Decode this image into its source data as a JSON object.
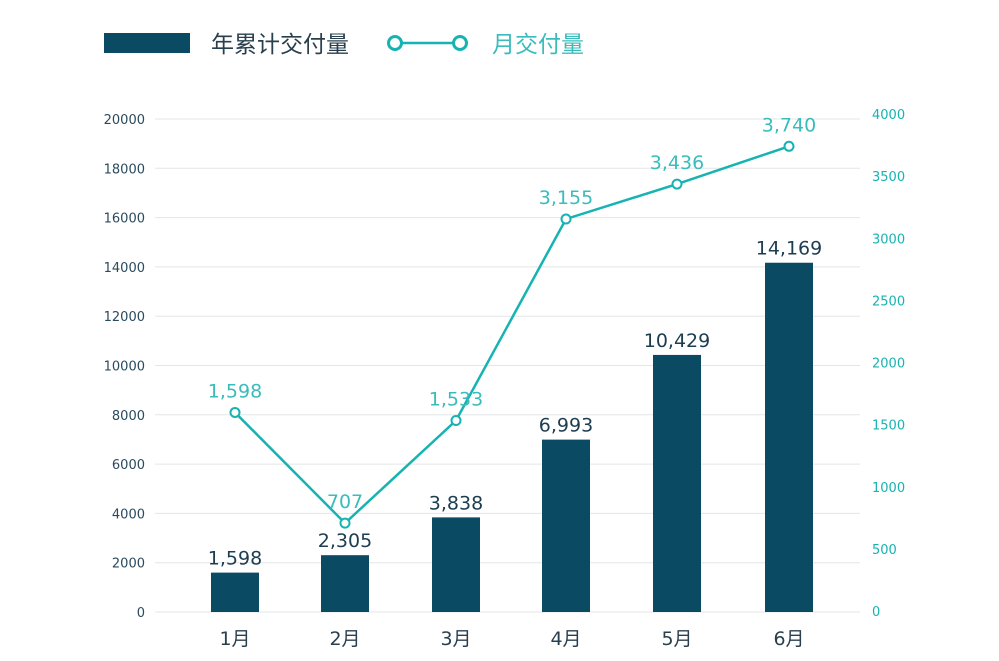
{
  "chart_data": {
    "type": "bar+line",
    "categories": [
      "1月",
      "2月",
      "3月",
      "4月",
      "5月",
      "6月"
    ],
    "series": [
      {
        "name": "年累计交付量",
        "type": "bar",
        "axis": "left",
        "values": [
          1598,
          2305,
          3838,
          6993,
          10429,
          14169
        ],
        "labels": [
          "1,598",
          "2,305",
          "3,838",
          "6,993",
          "10,429",
          "14,169"
        ],
        "color": "#0b4a63"
      },
      {
        "name": "月交付量",
        "type": "line",
        "axis": "right",
        "values": [
          1598,
          707,
          1533,
          3155,
          3436,
          3740
        ],
        "labels": [
          "1,598",
          "707",
          "1,533",
          "3,155",
          "3,436",
          "3,740"
        ],
        "color": "#17b3b3"
      }
    ],
    "left_axis": {
      "ylim": [
        0,
        20000
      ],
      "ticks": [
        "0",
        "2000",
        "4000",
        "6000",
        "8000",
        "10000",
        "12000",
        "14000",
        "16000",
        "18000",
        "20000"
      ],
      "color": "#0b4a63"
    },
    "right_axis": {
      "ylim": [
        0,
        4000
      ],
      "ticks": [
        "0",
        "500",
        "1000",
        "1500",
        "2000",
        "2500",
        "3000",
        "3500",
        "4000"
      ],
      "color": "#17b3b3"
    },
    "grid": true,
    "legend": "top-left"
  }
}
